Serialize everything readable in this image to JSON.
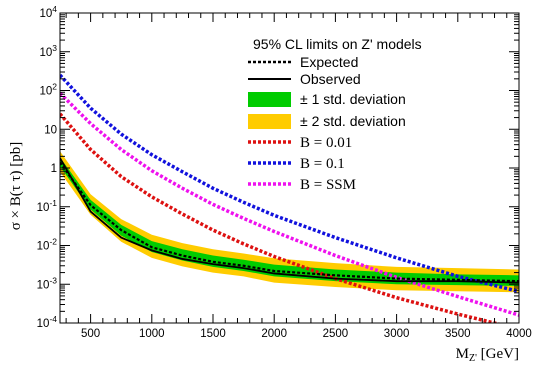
{
  "chart_data": {
    "type": "line",
    "title": "",
    "xlabel_main": "M",
    "xlabel_sub": "Z'",
    "xlabel_unit": " [GeV]",
    "ylabel": "σ × B(τ τ) [pb]",
    "xlim": [
      250,
      4000
    ],
    "ylim": [
      0.0001,
      10000
    ],
    "yscale": "log",
    "x_ticks": [
      500,
      1000,
      1500,
      2000,
      2500,
      3000,
      3500,
      4000
    ],
    "x_tick_labels": [
      "500",
      "1000",
      "1500",
      "2000",
      "2500",
      "3000",
      "3500",
      "4000"
    ],
    "y_tick_labels": [
      {
        "base": "10",
        "exp": "-4"
      },
      {
        "base": "10",
        "exp": "-3"
      },
      {
        "base": "10",
        "exp": "-2"
      },
      {
        "base": "10",
        "exp": "-1"
      },
      {
        "base": "1",
        "exp": ""
      },
      {
        "base": "10",
        "exp": ""
      },
      {
        "base": "10",
        "exp": "2"
      },
      {
        "base": "10",
        "exp": "3"
      },
      {
        "base": "10",
        "exp": "4"
      }
    ],
    "legend": {
      "title": "95% CL limits on Z' models",
      "placement": "top-right",
      "entries": [
        "Expected",
        "Observed",
        "± 1 std. deviation",
        "± 2 std. deviation",
        "B = 0.01",
        "B = 0.1",
        "B  =  SSM"
      ]
    },
    "colors": {
      "expected": "#000000",
      "observed": "#000000",
      "band1": "#00cc00",
      "band2": "#ffcc00",
      "b001": "#dd1111",
      "b01": "#1111dd",
      "ssm": "#ee11ee"
    },
    "x": [
      250,
      500,
      750,
      1000,
      1250,
      1500,
      1750,
      2000,
      2500,
      3000,
      3500,
      4000
    ],
    "expected": [
      1.4,
      0.11,
      0.025,
      0.009,
      0.0055,
      0.0038,
      0.003,
      0.0022,
      0.0017,
      0.0014,
      0.0013,
      0.0012
    ],
    "observed": [
      1.8,
      0.075,
      0.016,
      0.0075,
      0.0045,
      0.0033,
      0.0026,
      0.0019,
      0.0014,
      0.0012,
      0.0012,
      0.0011
    ],
    "band1": {
      "low": [
        1.1,
        0.085,
        0.018,
        0.0068,
        0.0041,
        0.0028,
        0.0022,
        0.0016,
        0.0012,
        0.001,
        0.00095,
        0.0009
      ],
      "high": [
        1.9,
        0.15,
        0.034,
        0.013,
        0.008,
        0.0055,
        0.0043,
        0.0032,
        0.0024,
        0.002,
        0.0018,
        0.0017
      ]
    },
    "band2": {
      "low": [
        0.8,
        0.062,
        0.0125,
        0.0048,
        0.0029,
        0.002,
        0.0016,
        0.0011,
        0.00085,
        0.0007,
        0.00066,
        0.00062
      ],
      "high": [
        2.7,
        0.21,
        0.048,
        0.019,
        0.0115,
        0.008,
        0.0062,
        0.0047,
        0.0035,
        0.0028,
        0.0026,
        0.0024
      ]
    },
    "b001": [
      25,
      3.0,
      0.6,
      0.18,
      0.065,
      0.025,
      0.011,
      0.0052,
      0.0014,
      0.00045,
      0.00017,
      7e-05
    ],
    "b01": [
      250,
      35,
      7.5,
      2.2,
      0.8,
      0.3,
      0.13,
      0.06,
      0.016,
      0.0048,
      0.0016,
      0.00065
    ],
    "ssm": [
      85,
      14,
      3.0,
      0.85,
      0.3,
      0.115,
      0.05,
      0.023,
      0.0055,
      0.0015,
      0.00048,
      0.00016
    ]
  }
}
